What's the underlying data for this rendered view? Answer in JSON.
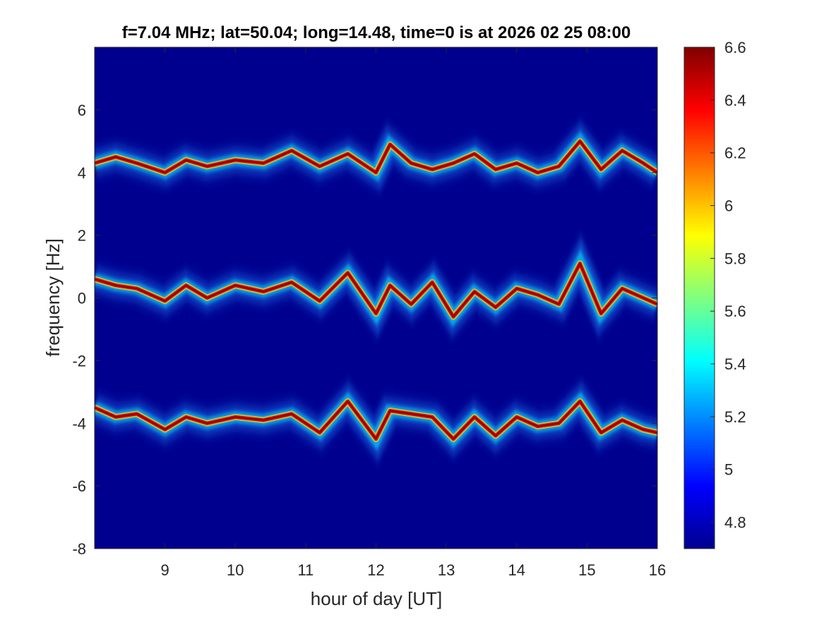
{
  "chart_data": {
    "type": "heatmap",
    "title": "f=7.04 MHz;  lat=50.04; long=14.48, time=0 is at 2026 02 25 08:00",
    "xlabel": "hour of day [UT]",
    "ylabel": "frequency [Hz]",
    "xlim": [
      8.0,
      16.0
    ],
    "ylim": [
      -8,
      8
    ],
    "x_ticks": [
      9,
      10,
      11,
      12,
      13,
      14,
      15,
      16
    ],
    "y_ticks": [
      -8,
      -6,
      -4,
      -2,
      0,
      2,
      4,
      6
    ],
    "colormap": "jet",
    "colorbar": {
      "range": [
        4.7,
        6.6
      ],
      "ticks": [
        4.8,
        5,
        5.2,
        5.4,
        5.6,
        5.8,
        6,
        6.2,
        6.4,
        6.6
      ],
      "tick_labels": [
        "4.8",
        "5",
        "5.2",
        "5.4",
        "5.6",
        "5.8",
        "6",
        "6.2",
        "6.4",
        "6.6"
      ],
      "placement": "right"
    },
    "background_value": 4.7,
    "grid": false,
    "traces": [
      {
        "name": "",
        "hours": [
          8.0,
          8.3,
          8.6,
          9.0,
          9.3,
          9.6,
          10.0,
          10.4,
          10.8,
          11.2,
          11.6,
          12.0,
          12.2,
          12.5,
          12.8,
          13.1,
          13.4,
          13.7,
          14.0,
          14.3,
          14.6,
          14.9,
          15.2,
          15.5,
          15.8,
          16.0
        ],
        "freq_hz": [
          4.3,
          4.5,
          4.3,
          4.0,
          4.4,
          4.2,
          4.4,
          4.3,
          4.7,
          4.2,
          4.6,
          4.0,
          4.9,
          4.3,
          4.1,
          4.3,
          4.6,
          4.1,
          4.3,
          4.0,
          4.2,
          5.0,
          4.1,
          4.7,
          4.3,
          4.0
        ]
      },
      {
        "name": "",
        "hours": [
          8.0,
          8.3,
          8.6,
          9.0,
          9.3,
          9.6,
          10.0,
          10.4,
          10.8,
          11.2,
          11.6,
          12.0,
          12.2,
          12.5,
          12.8,
          13.1,
          13.4,
          13.7,
          14.0,
          14.3,
          14.6,
          14.9,
          15.2,
          15.5,
          15.8,
          16.0
        ],
        "freq_hz": [
          0.6,
          0.4,
          0.3,
          -0.1,
          0.4,
          0.0,
          0.4,
          0.2,
          0.5,
          -0.1,
          0.8,
          -0.5,
          0.4,
          -0.2,
          0.5,
          -0.6,
          0.2,
          -0.3,
          0.3,
          0.1,
          -0.2,
          1.1,
          -0.5,
          0.3,
          0.0,
          -0.2
        ]
      },
      {
        "name": "",
        "hours": [
          8.0,
          8.3,
          8.6,
          9.0,
          9.3,
          9.6,
          10.0,
          10.4,
          10.8,
          11.2,
          11.6,
          12.0,
          12.2,
          12.5,
          12.8,
          13.1,
          13.4,
          13.7,
          14.0,
          14.3,
          14.6,
          14.9,
          15.2,
          15.5,
          15.8,
          16.0
        ],
        "freq_hz": [
          -3.5,
          -3.8,
          -3.7,
          -4.2,
          -3.8,
          -4.0,
          -3.8,
          -3.9,
          -3.7,
          -4.3,
          -3.3,
          -4.5,
          -3.6,
          -3.7,
          -3.8,
          -4.5,
          -3.8,
          -4.4,
          -3.8,
          -4.1,
          -4.0,
          -3.3,
          -4.3,
          -3.9,
          -4.2,
          -4.3
        ]
      }
    ]
  }
}
